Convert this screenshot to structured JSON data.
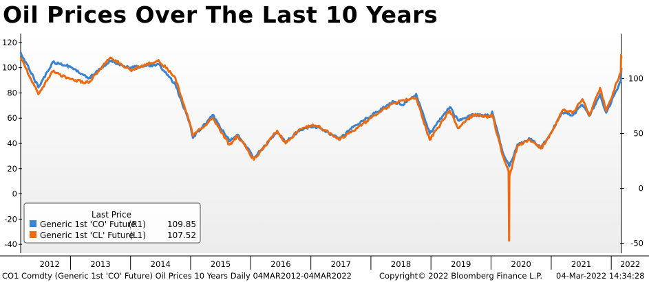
{
  "title": "Oil Prices Over The Last 10 Years",
  "legend": {
    "heading": "Last Price",
    "entries": [
      {
        "label": "Generic 1st 'CO' Future",
        "axis": "(R1)",
        "value": "109.85",
        "color": "#3a83d0"
      },
      {
        "label": "Generic 1st 'CL' Future",
        "axis": "(L1)",
        "value": "107.52",
        "color": "#ee6a10"
      }
    ]
  },
  "footer": {
    "left": "CO1 Comdty (Generic 1st 'CO' Future) Oil Prices 10 Years  Daily 04MAR2012-04MAR2022",
    "center": "Copyright© 2022 Bloomberg Finance L.P.",
    "right": "04-Mar-2022 14:34:28"
  },
  "chart_data": {
    "type": "line",
    "title": "Oil Prices Over The Last 10 Years",
    "x_range": [
      "2012-03-04",
      "2022-03-04"
    ],
    "x_ticks": [
      "2012",
      "2013",
      "2014",
      "2015",
      "2016",
      "2017",
      "2018",
      "2019",
      "2020",
      "2021",
      "2022"
    ],
    "left_axis": {
      "ticks": [
        120,
        100,
        80,
        60,
        40,
        20,
        0,
        -20,
        -40
      ],
      "range": [
        -47,
        127
      ]
    },
    "right_axis": {
      "ticks": [
        100,
        50,
        0,
        -50
      ],
      "range": [
        -59,
        141
      ]
    },
    "legend_position": "bottom-left",
    "grid": false,
    "series": [
      {
        "name": "Generic 1st 'CO' Future",
        "axis": "right",
        "color": "#3a83d0",
        "points": [
          [
            "2012-03-04",
            124
          ],
          [
            "2012-06-20",
            92
          ],
          [
            "2012-09-15",
            115
          ],
          [
            "2012-12-31",
            111
          ],
          [
            "2013-04-20",
            100
          ],
          [
            "2013-09-01",
            116
          ],
          [
            "2013-12-31",
            110
          ],
          [
            "2014-06-20",
            113
          ],
          [
            "2014-09-30",
            95
          ],
          [
            "2014-12-31",
            57
          ],
          [
            "2015-01-15",
            46
          ],
          [
            "2015-05-15",
            67
          ],
          [
            "2015-08-25",
            43
          ],
          [
            "2015-10-15",
            49
          ],
          [
            "2016-01-20",
            28
          ],
          [
            "2016-06-10",
            51
          ],
          [
            "2016-08-01",
            42
          ],
          [
            "2016-10-15",
            52
          ],
          [
            "2016-12-31",
            56
          ],
          [
            "2017-02-15",
            56
          ],
          [
            "2017-06-20",
            45
          ],
          [
            "2017-09-15",
            56
          ],
          [
            "2017-12-31",
            66
          ],
          [
            "2018-05-20",
            79
          ],
          [
            "2018-07-10",
            76
          ],
          [
            "2018-10-03",
            86
          ],
          [
            "2018-12-24",
            50
          ],
          [
            "2019-04-25",
            74
          ],
          [
            "2019-06-15",
            62
          ],
          [
            "2019-09-16",
            67
          ],
          [
            "2019-12-31",
            66
          ],
          [
            "2020-01-08",
            70
          ],
          [
            "2020-03-10",
            34
          ],
          [
            "2020-04-21",
            20
          ],
          [
            "2020-06-10",
            40
          ],
          [
            "2020-08-25",
            45
          ],
          [
            "2020-11-01",
            37
          ],
          [
            "2020-12-31",
            51
          ],
          [
            "2021-03-10",
            69
          ],
          [
            "2021-05-15",
            67
          ],
          [
            "2021-07-10",
            76
          ],
          [
            "2021-08-20",
            66
          ],
          [
            "2021-10-25",
            86
          ],
          [
            "2021-12-01",
            69
          ],
          [
            "2021-12-31",
            78
          ],
          [
            "2022-02-01",
            89
          ],
          [
            "2022-02-28",
            98
          ],
          [
            "2022-03-04",
            109.85
          ]
        ]
      },
      {
        "name": "Generic 1st 'CL' Future",
        "axis": "left",
        "color": "#ee6a10",
        "points": [
          [
            "2012-03-04",
            108
          ],
          [
            "2012-06-20",
            79
          ],
          [
            "2012-09-15",
            97
          ],
          [
            "2012-12-31",
            91
          ],
          [
            "2013-04-20",
            88
          ],
          [
            "2013-09-01",
            108
          ],
          [
            "2013-12-31",
            98
          ],
          [
            "2014-06-20",
            106
          ],
          [
            "2014-09-30",
            92
          ],
          [
            "2014-12-31",
            54
          ],
          [
            "2015-01-15",
            46
          ],
          [
            "2015-05-15",
            60
          ],
          [
            "2015-08-25",
            39
          ],
          [
            "2015-10-15",
            46
          ],
          [
            "2016-01-20",
            27
          ],
          [
            "2016-06-10",
            50
          ],
          [
            "2016-08-01",
            40
          ],
          [
            "2016-10-15",
            50
          ],
          [
            "2016-12-31",
            54
          ],
          [
            "2017-02-15",
            54
          ],
          [
            "2017-06-20",
            43
          ],
          [
            "2017-09-15",
            50
          ],
          [
            "2017-12-31",
            60
          ],
          [
            "2018-05-20",
            72
          ],
          [
            "2018-07-10",
            74
          ],
          [
            "2018-10-03",
            76
          ],
          [
            "2018-12-24",
            43
          ],
          [
            "2019-04-25",
            66
          ],
          [
            "2019-06-15",
            52
          ],
          [
            "2019-09-16",
            63
          ],
          [
            "2019-12-31",
            61
          ],
          [
            "2020-01-08",
            63
          ],
          [
            "2020-03-10",
            31
          ],
          [
            "2020-04-17",
            18
          ],
          [
            "2020-04-20",
            -37
          ],
          [
            "2020-04-22",
            14
          ],
          [
            "2020-06-10",
            38
          ],
          [
            "2020-08-25",
            43
          ],
          [
            "2020-11-01",
            36
          ],
          [
            "2020-12-31",
            48
          ],
          [
            "2021-03-10",
            66
          ],
          [
            "2021-05-15",
            65
          ],
          [
            "2021-07-10",
            75
          ],
          [
            "2021-08-20",
            62
          ],
          [
            "2021-10-25",
            84
          ],
          [
            "2021-12-01",
            66
          ],
          [
            "2021-12-31",
            75
          ],
          [
            "2022-02-01",
            88
          ],
          [
            "2022-02-28",
            96
          ],
          [
            "2022-03-02",
            110
          ],
          [
            "2022-03-04",
            107.52
          ]
        ]
      }
    ]
  }
}
